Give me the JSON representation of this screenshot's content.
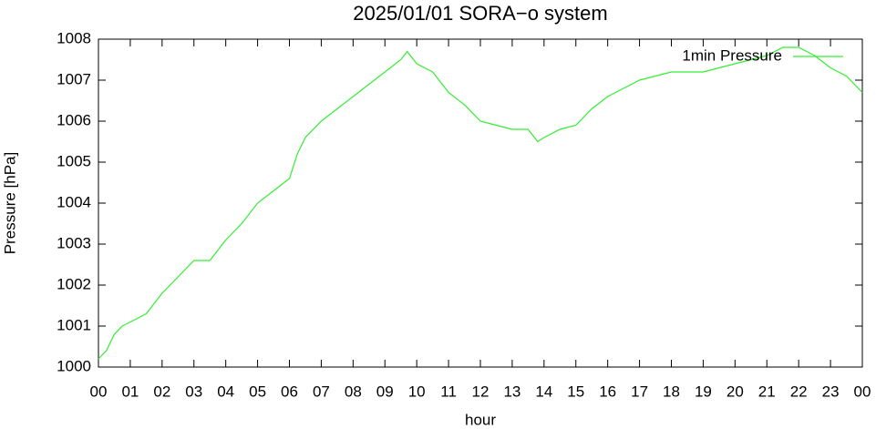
{
  "chart_data": {
    "type": "line",
    "title": "2025/01/01 SORA−o system",
    "x_label": "hour",
    "y_label": "Pressure [hPa]",
    "x": [
      0,
      0.25,
      0.5,
      0.75,
      1,
      1.5,
      2,
      2.5,
      3,
      3.5,
      4,
      4.5,
      5,
      5.5,
      6,
      6.25,
      6.5,
      7,
      7.5,
      8,
      8.5,
      9,
      9.5,
      9.7,
      10,
      10.5,
      11,
      11.5,
      12,
      12.5,
      13,
      13.5,
      13.8,
      14,
      14.5,
      15,
      15.5,
      16,
      16.5,
      17,
      17.5,
      18,
      18.5,
      19,
      19.5,
      20,
      20.5,
      21,
      21.5,
      22,
      22.5,
      23,
      23.5,
      24
    ],
    "series": [
      {
        "name": "1min Pressure",
        "color": "#33ee33",
        "values": [
          1000.2,
          1000.4,
          1000.8,
          1001.0,
          1001.1,
          1001.3,
          1001.8,
          1002.2,
          1002.6,
          1002.6,
          1003.1,
          1003.5,
          1004.0,
          1004.3,
          1004.6,
          1005.2,
          1005.6,
          1006.0,
          1006.3,
          1006.6,
          1006.9,
          1007.2,
          1007.5,
          1007.7,
          1007.4,
          1007.2,
          1006.7,
          1006.4,
          1006.0,
          1005.9,
          1005.8,
          1005.8,
          1005.5,
          1005.6,
          1005.8,
          1005.9,
          1006.3,
          1006.6,
          1006.8,
          1007.0,
          1007.1,
          1007.2,
          1007.2,
          1007.2,
          1007.3,
          1007.4,
          1007.5,
          1007.6,
          1007.8,
          1007.8,
          1007.6,
          1007.3,
          1007.1,
          1006.7
        ]
      }
    ],
    "xlim": [
      0,
      24
    ],
    "ylim": [
      1000,
      1008
    ],
    "xticks": [
      {
        "value": 0,
        "label": "00"
      },
      {
        "value": 1,
        "label": "01"
      },
      {
        "value": 2,
        "label": "02"
      },
      {
        "value": 3,
        "label": "03"
      },
      {
        "value": 4,
        "label": "04"
      },
      {
        "value": 5,
        "label": "05"
      },
      {
        "value": 6,
        "label": "06"
      },
      {
        "value": 7,
        "label": "07"
      },
      {
        "value": 8,
        "label": "08"
      },
      {
        "value": 9,
        "label": "09"
      },
      {
        "value": 10,
        "label": "10"
      },
      {
        "value": 11,
        "label": "11"
      },
      {
        "value": 12,
        "label": "12"
      },
      {
        "value": 13,
        "label": "13"
      },
      {
        "value": 14,
        "label": "14"
      },
      {
        "value": 15,
        "label": "15"
      },
      {
        "value": 16,
        "label": "16"
      },
      {
        "value": 17,
        "label": "17"
      },
      {
        "value": 18,
        "label": "18"
      },
      {
        "value": 19,
        "label": "19"
      },
      {
        "value": 20,
        "label": "20"
      },
      {
        "value": 21,
        "label": "21"
      },
      {
        "value": 22,
        "label": "22"
      },
      {
        "value": 23,
        "label": "23"
      },
      {
        "value": 24,
        "label": "00"
      }
    ],
    "yticks": [
      1000,
      1001,
      1002,
      1003,
      1004,
      1005,
      1006,
      1007,
      1008
    ],
    "legend": "top-right"
  }
}
